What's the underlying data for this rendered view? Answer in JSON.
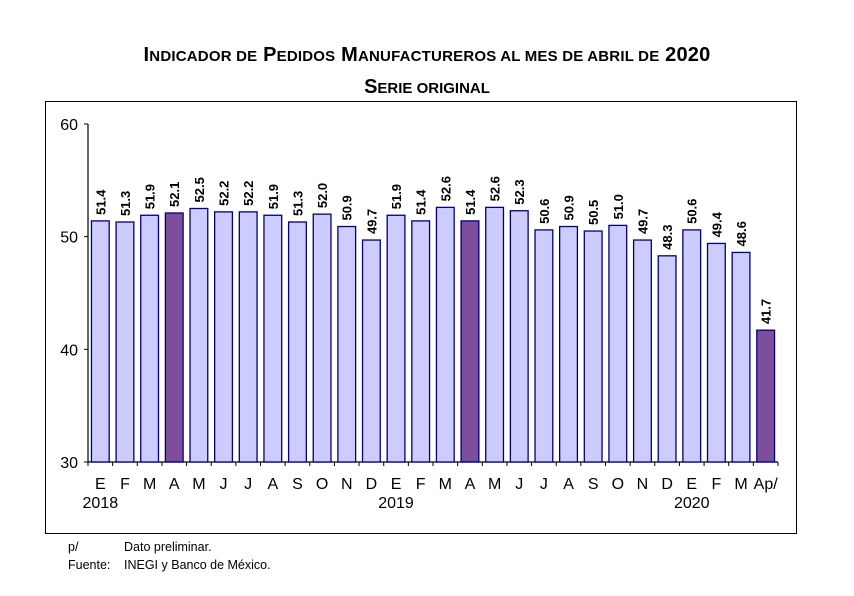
{
  "chart_data": {
    "type": "bar",
    "title": "Indicador de Pedidos Manufactureros al mes de abril de 2020",
    "subtitle": "Serie original",
    "categories": [
      "E",
      "F",
      "M",
      "A",
      "M",
      "J",
      "J",
      "A",
      "S",
      "O",
      "N",
      "D",
      "E",
      "F",
      "M",
      "A",
      "M",
      "J",
      "J",
      "A",
      "S",
      "O",
      "N",
      "D",
      "E",
      "F",
      "M",
      "Ap/"
    ],
    "values": [
      51.4,
      51.3,
      51.9,
      52.1,
      52.5,
      52.2,
      52.2,
      51.9,
      51.3,
      52.0,
      50.9,
      49.7,
      51.9,
      51.4,
      52.6,
      51.4,
      52.6,
      52.3,
      50.6,
      50.9,
      50.5,
      51.0,
      49.7,
      48.3,
      50.6,
      49.4,
      48.6,
      41.7
    ],
    "highlighted": [
      3,
      15,
      27
    ],
    "years": [
      {
        "label": "2018",
        "index": 0
      },
      {
        "label": "2019",
        "index": 12
      },
      {
        "label": "2020",
        "index": 24
      }
    ],
    "ylim": [
      30,
      60
    ],
    "yticks": [
      30,
      40,
      50,
      60
    ],
    "xlabel": "",
    "ylabel": "",
    "colors": {
      "bar_fill": "#ccccff",
      "bar_stroke": "#00007a",
      "highlight_fill": "#7e4e9e"
    }
  },
  "footnotes": {
    "prelim_mark": "p/",
    "prelim_text": "Dato preliminar.",
    "source_label": "Fuente:",
    "source_text": "INEGI y Banco de México."
  }
}
